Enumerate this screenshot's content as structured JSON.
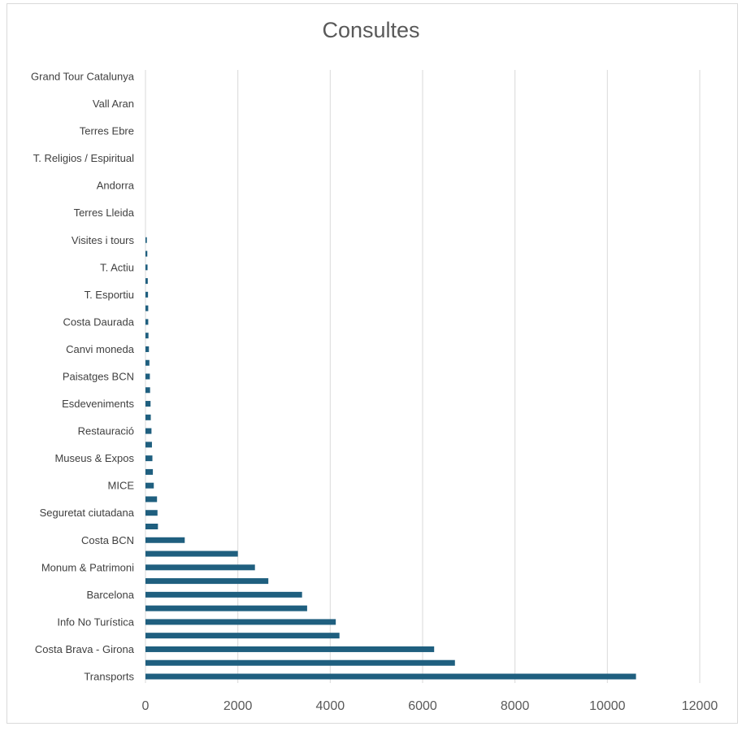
{
  "chart_data": {
    "type": "bar",
    "orientation": "horizontal",
    "title": "Consultes",
    "xlabel": "",
    "ylabel": "",
    "xlim": [
      0,
      12000
    ],
    "x_ticks": [
      "0",
      "2000",
      "4000",
      "6000",
      "8000",
      "10000",
      "12000"
    ],
    "grid": "vertical",
    "legend": "none",
    "bar_color": "#1f5f7f",
    "categories": [
      "Grand Tour Catalunya",
      "",
      "Vall Aran",
      "",
      "Terres Ebre",
      "",
      "T. Religios / Espiritual",
      "",
      "Andorra",
      "",
      "Terres Lleida",
      "",
      "Visites i tours",
      "",
      "T. Actiu",
      "",
      "T. Esportiu",
      "",
      "Costa Daurada",
      "",
      "Canvi moneda",
      "",
      "Paisatges BCN",
      "",
      "Esdeveniments",
      "",
      "Restauració",
      "",
      "Museus & Expos",
      "",
      "MICE",
      "",
      "Seguretat ciutadana",
      "",
      "Costa BCN",
      "",
      "Monum & Patrimoni",
      "",
      "Barcelona",
      "",
      "Info No Turística",
      "",
      "Costa Brava - Girona",
      "",
      "Transports"
    ],
    "values": [
      0,
      0,
      0,
      0,
      0,
      0,
      0,
      0,
      0,
      0,
      0,
      0,
      30,
      40,
      45,
      50,
      55,
      60,
      60,
      65,
      75,
      85,
      95,
      100,
      110,
      115,
      130,
      140,
      150,
      160,
      180,
      250,
      260,
      270,
      850,
      2000,
      2370,
      2660,
      3390,
      3500,
      4120,
      4200,
      6250,
      6700,
      10620
    ]
  }
}
